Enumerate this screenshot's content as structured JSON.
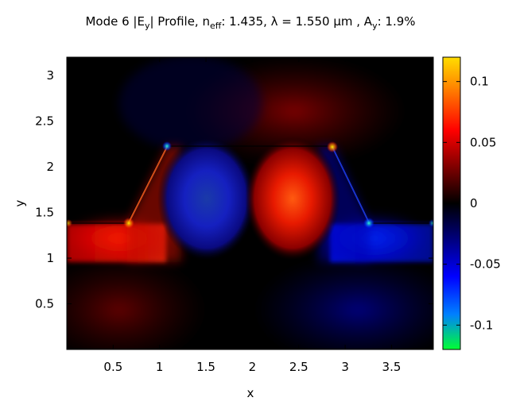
{
  "chart_data": {
    "type": "heatmap",
    "title": {
      "prefix": "Mode 6 |E",
      "e_sub": "y",
      "mid": "| Profile, n",
      "n_sub": "eff",
      "neff": ": 1.435, λ = 1.550 μm , A",
      "a_sub": "y",
      "ay": ": 1.9%"
    },
    "xlabel": "x",
    "ylabel": "y",
    "xlim": [
      0,
      3.95
    ],
    "ylim": [
      0,
      3.2
    ],
    "xticks": [
      0.5,
      1,
      1.5,
      2,
      2.5,
      3,
      3.5
    ],
    "xtick_labels": [
      "0.5",
      "1",
      "1.5",
      "2",
      "2.5",
      "3",
      "3.5"
    ],
    "yticks": [
      0.5,
      1,
      1.5,
      2,
      2.5,
      3
    ],
    "ytick_labels": [
      "0.5",
      "1",
      "1.5",
      "2",
      "2.5",
      "3"
    ],
    "colorbar": {
      "range": [
        -0.12,
        0.12
      ],
      "ticks": [
        0.1,
        0.05,
        0,
        -0.05,
        -0.1
      ],
      "tick_labels": [
        "0.1",
        "0.05",
        "0",
        "-0.05",
        "-0.1"
      ],
      "colors": [
        "#00ff33",
        "#0000ff",
        "#000000",
        "#ff0000",
        "#ffdd00"
      ]
    },
    "field_features": [
      {
        "label": "negative lobe",
        "x": 1.5,
        "y": 1.7,
        "value": -0.06
      },
      {
        "label": "positive lobe",
        "x": 2.45,
        "y": 1.7,
        "value": 0.07
      },
      {
        "label": "left slab region",
        "x": 0.6,
        "y": 1.2,
        "value": 0.045
      },
      {
        "label": "right slab region",
        "x": 3.4,
        "y": 1.2,
        "value": -0.045
      }
    ]
  }
}
